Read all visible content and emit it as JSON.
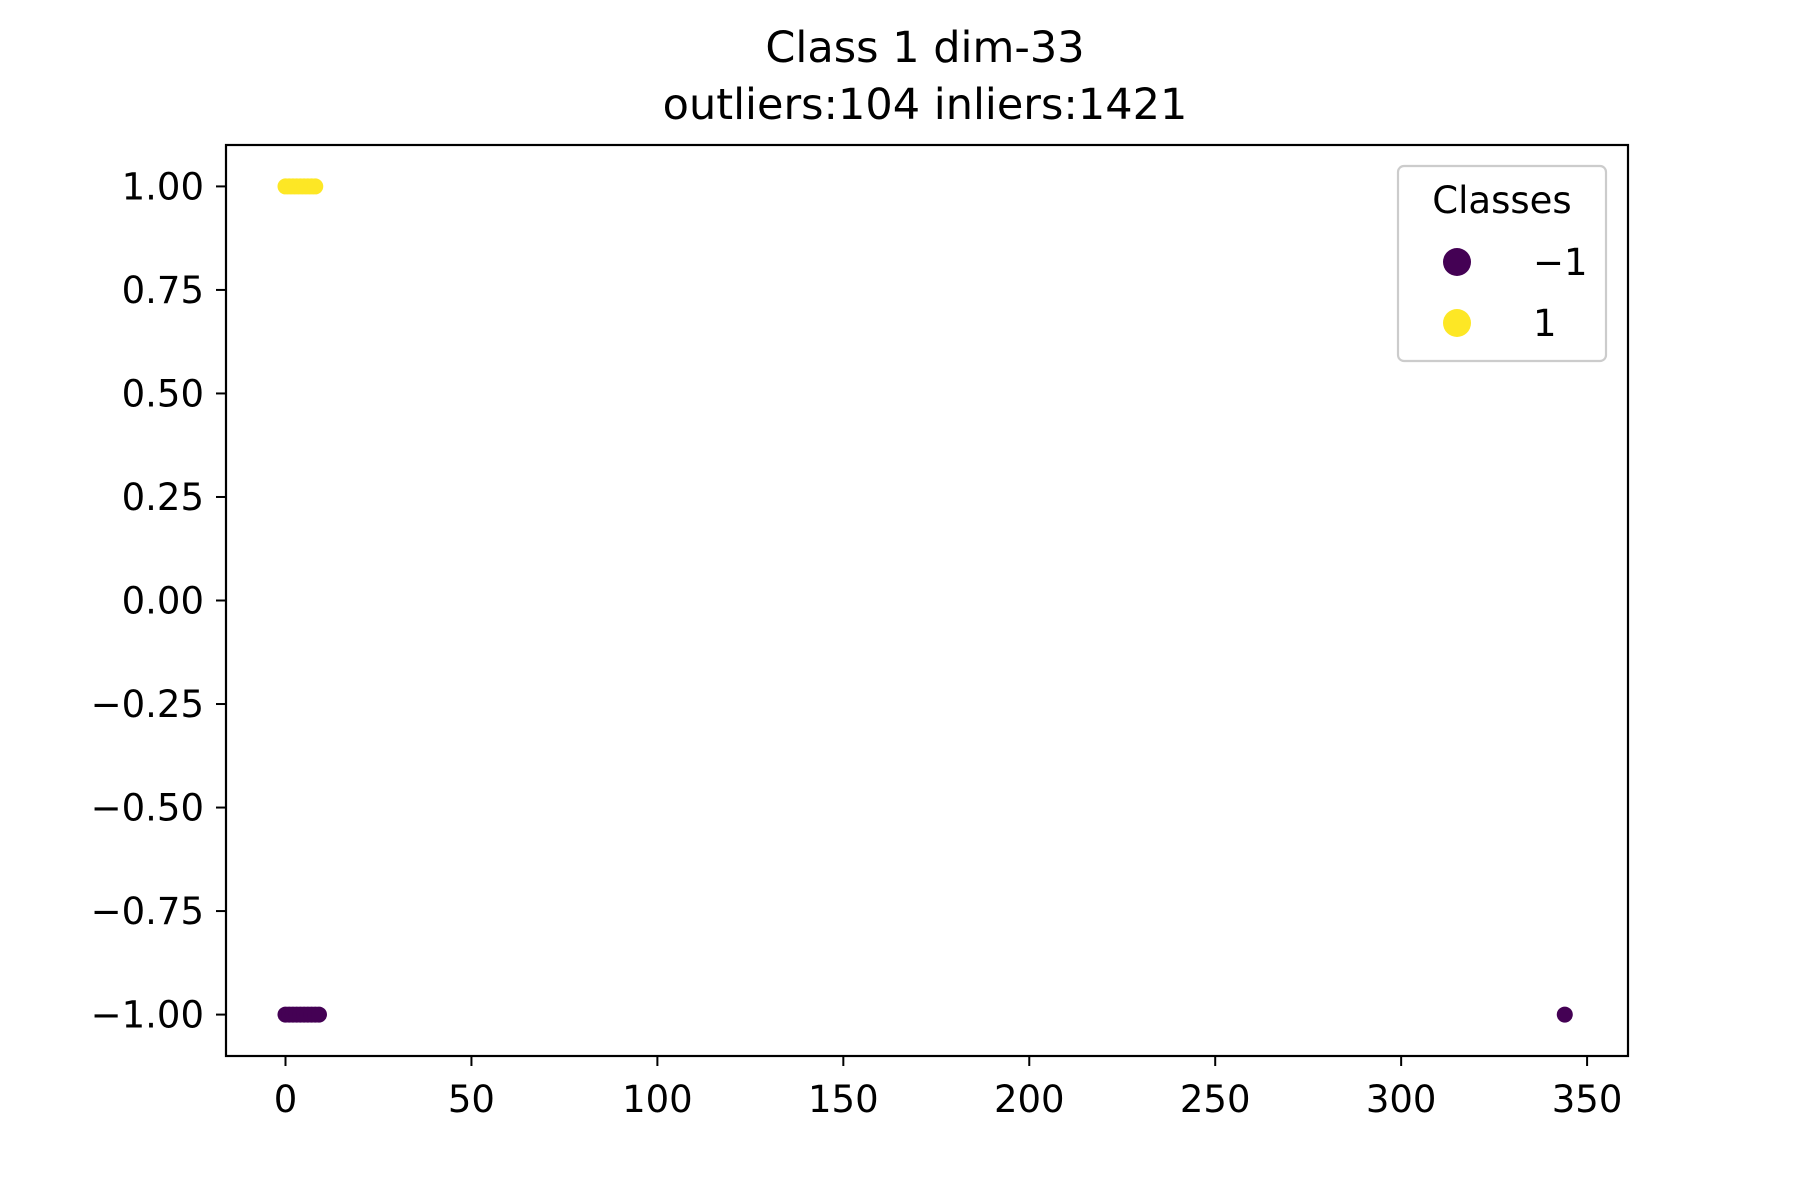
{
  "chart_data": {
    "type": "scatter",
    "title": "Class 1 dim-33",
    "subtitle": "outliers:104  inliers:1421",
    "xlabel": "",
    "ylabel": "",
    "xlim": [
      -16,
      361
    ],
    "ylim": [
      -1.1,
      1.1
    ],
    "x_ticks": [
      0,
      50,
      100,
      150,
      200,
      250,
      300,
      350
    ],
    "x_tick_labels": [
      "0",
      "50",
      "100",
      "150",
      "200",
      "250",
      "300",
      "350"
    ],
    "y_ticks": [
      1.0,
      0.75,
      0.5,
      0.25,
      0.0,
      -0.25,
      -0.5,
      -0.75,
      -1.0
    ],
    "y_tick_labels": [
      "1.00",
      "0.75",
      "0.50",
      "0.25",
      "0.00",
      "−0.25",
      "−0.50",
      "−0.75",
      "−1.00"
    ],
    "grid": false,
    "legend": {
      "title": "Classes",
      "placement": "top-right",
      "entries": [
        {
          "label": "−1",
          "color": "#440154"
        },
        {
          "label": "1",
          "color": "#fde725"
        }
      ]
    },
    "series": [
      {
        "class": -1,
        "color": "#440154",
        "points": [
          [
            0,
            -1
          ],
          [
            1,
            -1
          ],
          [
            2,
            -1
          ],
          [
            3,
            -1
          ],
          [
            4,
            -1
          ],
          [
            5,
            -1
          ],
          [
            6,
            -1
          ],
          [
            7,
            -1
          ],
          [
            8,
            -1
          ],
          [
            9,
            -1
          ],
          [
            344,
            -1
          ]
        ]
      },
      {
        "class": 1,
        "color": "#fde725",
        "points": [
          [
            0,
            1
          ],
          [
            1,
            1
          ],
          [
            2,
            1
          ],
          [
            3,
            1
          ],
          [
            4,
            1
          ],
          [
            5,
            1
          ],
          [
            6,
            1
          ],
          [
            7,
            1
          ],
          [
            8,
            1
          ]
        ]
      }
    ]
  }
}
